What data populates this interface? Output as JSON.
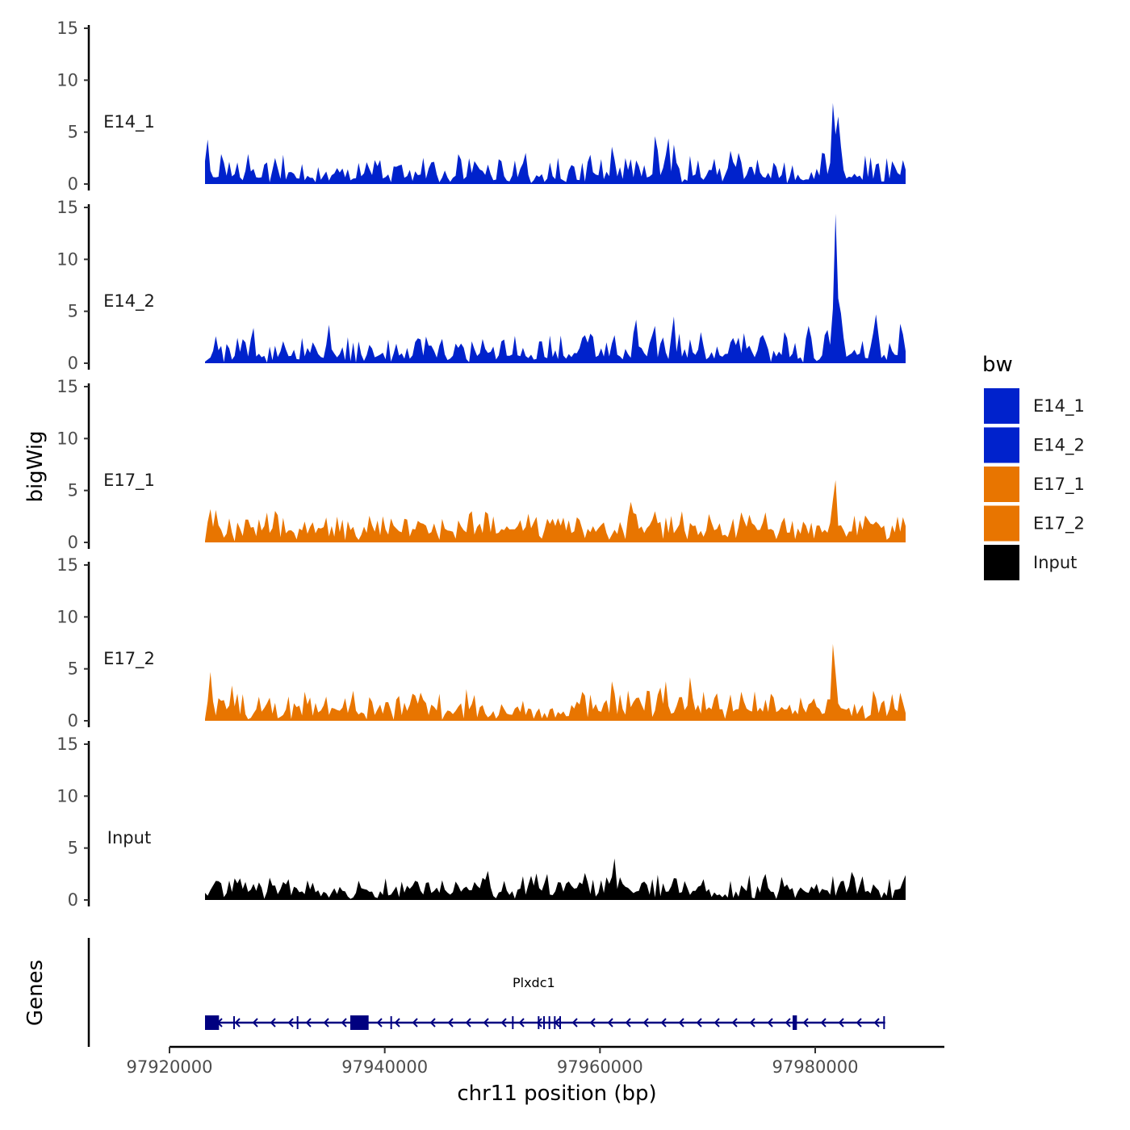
{
  "chart_data": {
    "type": "area",
    "title": "",
    "ylabel": "bigWig",
    "xlabel": "chr11 position (bp)",
    "gene_track_label": "Genes",
    "ylim": [
      0,
      15
    ],
    "yticks": [
      0,
      5,
      10,
      15
    ],
    "xlim": [
      97920000,
      97992000
    ],
    "xticks": [
      97920000,
      97940000,
      97960000,
      97980000
    ],
    "xtick_labels": [
      "97920000",
      "97940000",
      "97960000",
      "97980000"
    ],
    "data_range": [
      97923300,
      97988400
    ],
    "legend": {
      "title": "bw",
      "position": "right",
      "entries": [
        {
          "name": "E14_1",
          "color": "#0022CC"
        },
        {
          "name": "E14_2",
          "color": "#0022CC"
        },
        {
          "name": "E17_1",
          "color": "#E87500"
        },
        {
          "name": "E17_2",
          "color": "#E87500"
        },
        {
          "name": "Input",
          "color": "#000000"
        }
      ]
    },
    "series": [
      {
        "name": "E14_1",
        "color": "#0022CC",
        "baseline": 0.6,
        "noise": 1.4,
        "peaks": [
          {
            "x": 97923500,
            "y": 4.3
          },
          {
            "x": 97927300,
            "y": 2.9
          },
          {
            "x": 97936000,
            "y": 1.5
          },
          {
            "x": 97938300,
            "y": 2.1
          },
          {
            "x": 97953000,
            "y": 3.0
          },
          {
            "x": 97961200,
            "y": 3.6
          },
          {
            "x": 97962800,
            "y": 2.4
          },
          {
            "x": 97965200,
            "y": 4.6
          },
          {
            "x": 97966300,
            "y": 4.4
          },
          {
            "x": 97966900,
            "y": 3.8
          },
          {
            "x": 97972200,
            "y": 3.2
          },
          {
            "x": 97973000,
            "y": 3.0
          },
          {
            "x": 97980700,
            "y": 3.0
          },
          {
            "x": 97981700,
            "y": 7.8
          },
          {
            "x": 97982200,
            "y": 6.5
          },
          {
            "x": 97988200,
            "y": 2.3
          }
        ]
      },
      {
        "name": "E14_2",
        "color": "#0022CC",
        "baseline": 0.6,
        "noise": 1.4,
        "peaks": [
          {
            "x": 97924300,
            "y": 2.6
          },
          {
            "x": 97927700,
            "y": 3.4
          },
          {
            "x": 97934800,
            "y": 3.7
          },
          {
            "x": 97943200,
            "y": 2.4
          },
          {
            "x": 97947200,
            "y": 1.9
          },
          {
            "x": 97950000,
            "y": 1.6
          },
          {
            "x": 97958700,
            "y": 2.7
          },
          {
            "x": 97963300,
            "y": 4.2
          },
          {
            "x": 97965000,
            "y": 3.6
          },
          {
            "x": 97966800,
            "y": 4.5
          },
          {
            "x": 97973400,
            "y": 2.9
          },
          {
            "x": 97977200,
            "y": 3.0
          },
          {
            "x": 97979500,
            "y": 3.6
          },
          {
            "x": 97981200,
            "y": 3.2
          },
          {
            "x": 97981900,
            "y": 14.4
          },
          {
            "x": 97982400,
            "y": 4.8
          },
          {
            "x": 97985700,
            "y": 4.7
          },
          {
            "x": 97988000,
            "y": 3.8
          }
        ]
      },
      {
        "name": "E17_1",
        "color": "#E87500",
        "baseline": 0.9,
        "noise": 1.2,
        "peaks": [
          {
            "x": 97923800,
            "y": 3.2
          },
          {
            "x": 97934500,
            "y": 2.4
          },
          {
            "x": 97942000,
            "y": 2.2
          },
          {
            "x": 97948000,
            "y": 3.0
          },
          {
            "x": 97962800,
            "y": 3.9
          },
          {
            "x": 97965000,
            "y": 3.0
          },
          {
            "x": 97967600,
            "y": 3.0
          },
          {
            "x": 97973100,
            "y": 2.9
          },
          {
            "x": 97975300,
            "y": 2.9
          },
          {
            "x": 97981800,
            "y": 6.0
          },
          {
            "x": 97985000,
            "y": 2.2
          }
        ]
      },
      {
        "name": "E17_2",
        "color": "#E87500",
        "baseline": 0.8,
        "noise": 1.2,
        "peaks": [
          {
            "x": 97923800,
            "y": 4.7
          },
          {
            "x": 97925800,
            "y": 3.4
          },
          {
            "x": 97937000,
            "y": 2.9
          },
          {
            "x": 97942500,
            "y": 2.6
          },
          {
            "x": 97961200,
            "y": 3.8
          },
          {
            "x": 97964400,
            "y": 2.9
          },
          {
            "x": 97965600,
            "y": 3.2
          },
          {
            "x": 97966100,
            "y": 3.8
          },
          {
            "x": 97968400,
            "y": 4.2
          },
          {
            "x": 97973200,
            "y": 2.8
          },
          {
            "x": 97976000,
            "y": 2.6
          },
          {
            "x": 97981700,
            "y": 7.4
          },
          {
            "x": 97985500,
            "y": 2.9
          },
          {
            "x": 97988000,
            "y": 2.7
          }
        ]
      },
      {
        "name": "Input",
        "color": "#000000",
        "baseline": 0.7,
        "noise": 1.0,
        "peaks": [
          {
            "x": 97949600,
            "y": 2.8
          },
          {
            "x": 97955000,
            "y": 2.5
          },
          {
            "x": 97958700,
            "y": 2.6
          },
          {
            "x": 97961300,
            "y": 4.0
          },
          {
            "x": 97966800,
            "y": 2.1
          },
          {
            "x": 97969500,
            "y": 2.0
          },
          {
            "x": 97975400,
            "y": 2.5
          },
          {
            "x": 97983500,
            "y": 2.7
          },
          {
            "x": 97988300,
            "y": 2.4
          }
        ]
      }
    ],
    "genes": [
      {
        "name": "Plxdc1",
        "color": "#000080",
        "strand": "-",
        "start": 97923300,
        "end": 97986500,
        "exons": [
          {
            "start": 97923300,
            "end": 97924600
          },
          {
            "start": 97936800,
            "end": 97938500
          },
          {
            "start": 97977900,
            "end": 97978300
          }
        ],
        "exon_marks": [
          97926000,
          97931900,
          97940600,
          97951900,
          97954300,
          97954800,
          97955300,
          97955800,
          97956300,
          97986400
        ]
      }
    ]
  }
}
